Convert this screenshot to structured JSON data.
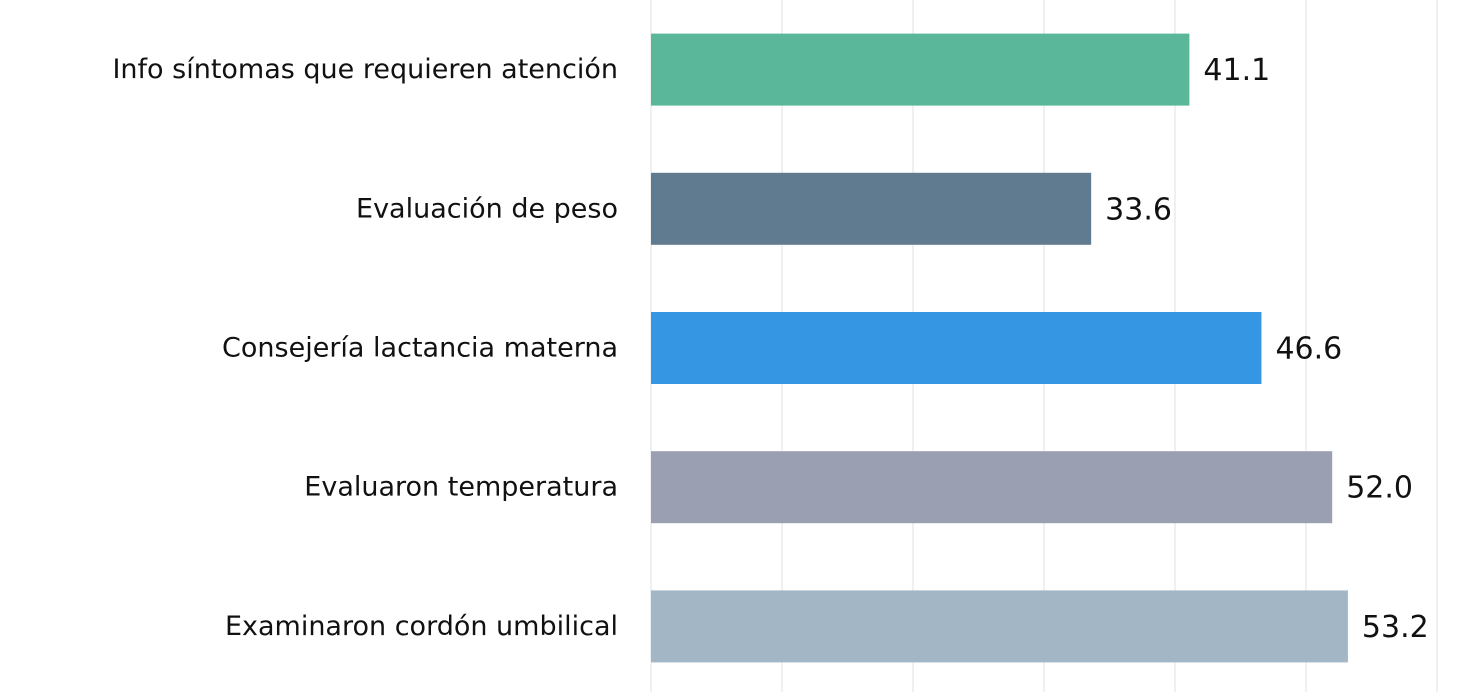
{
  "chart_data": {
    "type": "barh",
    "categories": [
      "Info síntomas que requieren atención",
      "Evaluación de peso",
      "Consejería lactancia materna",
      "Evaluaron temperatura",
      "Examinaron cordón umbilical"
    ],
    "values": [
      41.1,
      33.6,
      46.6,
      52.0,
      53.2
    ],
    "value_labels": [
      "41.1",
      "33.6",
      "46.6",
      "52.0",
      "53.2"
    ],
    "colors": [
      "#5bb79a",
      "#607b90",
      "#3597e3",
      "#9aa0b2",
      "#a3b6c6"
    ],
    "xlim": [
      0,
      60
    ],
    "xticks": [
      0,
      10,
      20,
      30,
      40,
      50,
      60
    ],
    "grid": true
  }
}
